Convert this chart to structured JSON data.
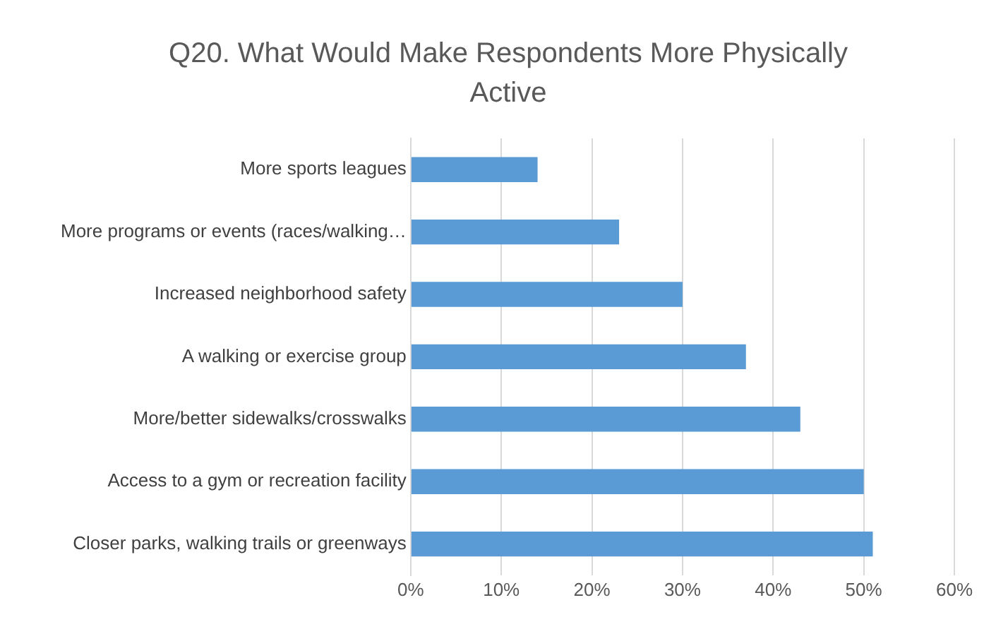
{
  "chart_data": {
    "type": "bar",
    "orientation": "horizontal",
    "title": "Q20. What Would Make Respondents More Physically Active",
    "categories": [
      "More sports leagues",
      "More programs or events (races/walking…",
      "Increased neighborhood safety",
      "A walking or exercise group",
      "More/better sidewalks/crosswalks",
      "Access to a gym or recreation facility",
      "Closer parks, walking trails or greenways"
    ],
    "values": [
      14,
      23,
      30,
      37,
      43,
      50,
      51
    ],
    "color": "#5b9bd5",
    "xlim": [
      0,
      60
    ],
    "xticks": [
      {
        "value": 0,
        "label": "0%"
      },
      {
        "value": 10,
        "label": "10%"
      },
      {
        "value": 20,
        "label": "20%"
      },
      {
        "value": 30,
        "label": "30%"
      },
      {
        "value": 40,
        "label": "40%"
      },
      {
        "value": 50,
        "label": "50%"
      },
      {
        "value": 60,
        "label": "60%"
      }
    ],
    "grid": "x"
  }
}
